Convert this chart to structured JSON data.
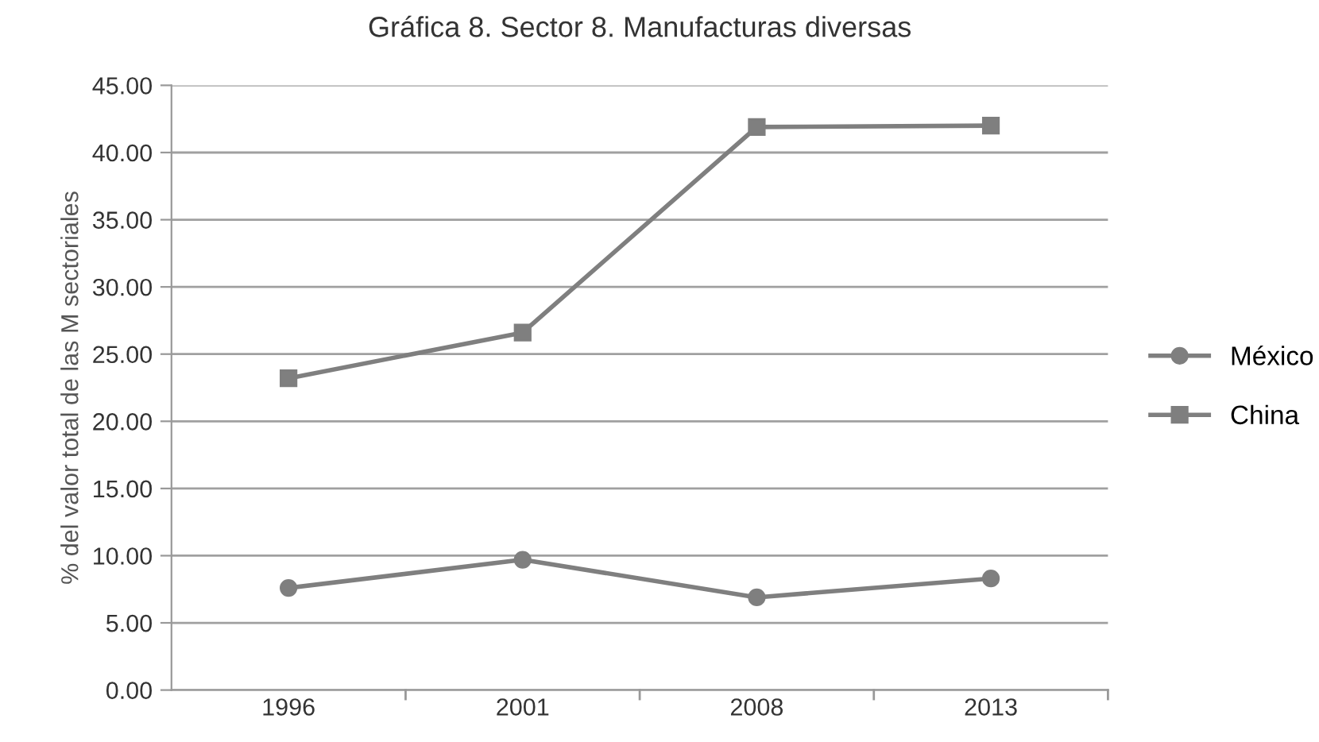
{
  "chart_data": {
    "type": "line",
    "title": "Gráfica 8. Sector 8. Manufacturas diversas",
    "ylabel": "% del valor total de las M sectoriales",
    "categories": [
      "1996",
      "2001",
      "2008",
      "2013"
    ],
    "series": [
      {
        "name": "México",
        "color": "#7f7f7f",
        "marker": "circle",
        "values": [
          7.6,
          9.7,
          6.9,
          8.3
        ]
      },
      {
        "name": "China",
        "color": "#7f7f7f",
        "marker": "square",
        "values": [
          23.2,
          26.6,
          41.9,
          42.0
        ]
      }
    ],
    "ylim": [
      0,
      45
    ],
    "yticks": [
      {
        "value": 0,
        "label": "0.00"
      },
      {
        "value": 5,
        "label": "5.00"
      },
      {
        "value": 10,
        "label": "10.00"
      },
      {
        "value": 15,
        "label": "15.00"
      },
      {
        "value": 20,
        "label": "20.00"
      },
      {
        "value": 25,
        "label": "25.00"
      },
      {
        "value": 30,
        "label": "30.00"
      },
      {
        "value": 35,
        "label": "35.00"
      },
      {
        "value": 40,
        "label": "40.00"
      },
      {
        "value": 45,
        "label": "45.00"
      }
    ],
    "grid": "y",
    "legend": "right",
    "line_style": "solid"
  }
}
